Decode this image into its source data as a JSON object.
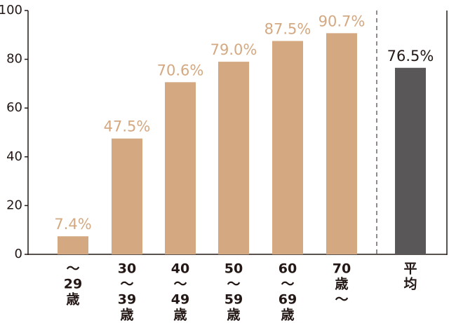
{
  "chart_data": {
    "type": "bar",
    "categories": [
      [
        "〜",
        "29",
        "歳"
      ],
      [
        "30",
        "〜",
        "39",
        "歳"
      ],
      [
        "40",
        "〜",
        "49",
        "歳"
      ],
      [
        "50",
        "〜",
        "59",
        "歳"
      ],
      [
        "60",
        "〜",
        "69",
        "歳"
      ],
      [
        "70",
        "歳",
        "〜"
      ],
      [
        "平",
        "均"
      ]
    ],
    "values": [
      7.4,
      47.5,
      70.6,
      79.0,
      87.5,
      90.7,
      76.5
    ],
    "value_labels": [
      "7.4%",
      "47.5%",
      "70.6%",
      "79.0%",
      "87.5%",
      "90.7%",
      "76.5%"
    ],
    "colors": [
      "#d4a982",
      "#d4a982",
      "#d4a982",
      "#d4a982",
      "#d4a982",
      "#d4a982",
      "#595757"
    ],
    "value_label_colors": [
      "#d4a982",
      "#d4a982",
      "#d4a982",
      "#d4a982",
      "#d4a982",
      "#d4a982",
      "#231815"
    ],
    "ylim": [
      0,
      100
    ],
    "yticks": [
      0,
      20,
      40,
      60,
      80,
      100
    ]
  }
}
